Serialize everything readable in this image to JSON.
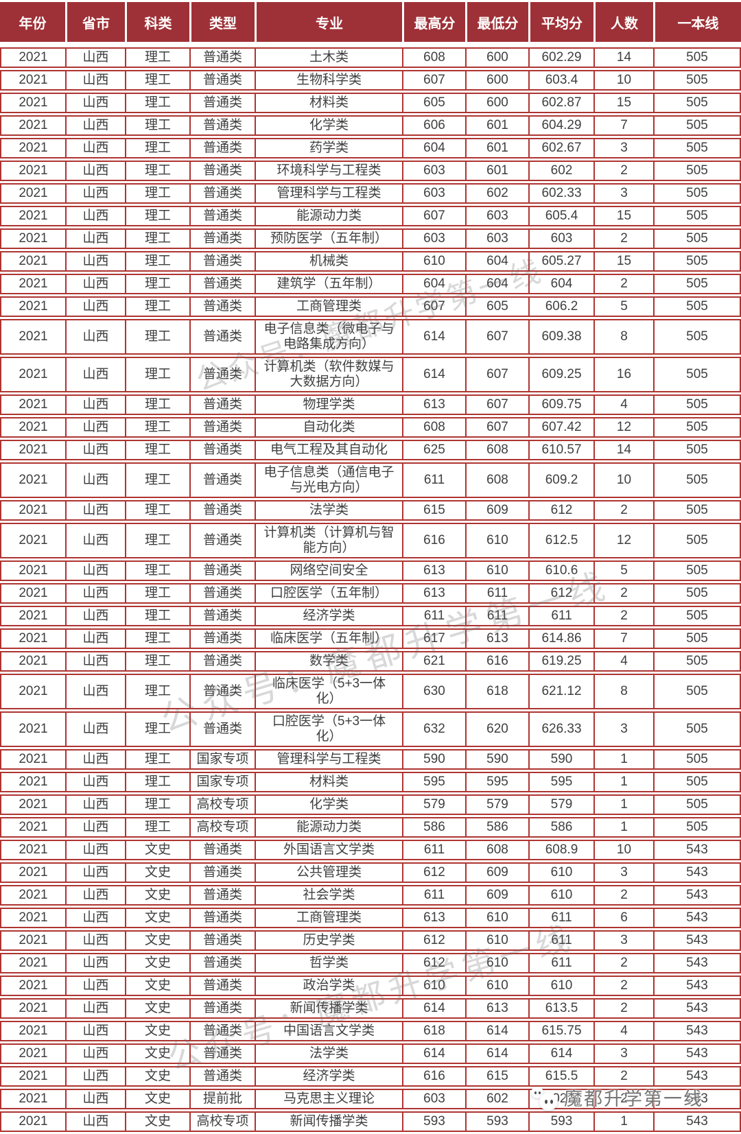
{
  "watermarks": {
    "diagonal_text": "公众号：魔都升学第一线",
    "badge_text": "魔都升学第一线",
    "badge_row_index": 42,
    "badge_cell_index": 7
  },
  "colors": {
    "header_bg": "#9e3137",
    "border": "#ae3431",
    "header_text": "#ffffff",
    "body_text": "#3f3f3f"
  },
  "chart_data": {
    "type": "table",
    "columns": [
      "年份",
      "省市",
      "科类",
      "类型",
      "专业",
      "最高分",
      "最低分",
      "平均分",
      "人数",
      "一本线"
    ],
    "column_keys": [
      "year",
      "province",
      "subject",
      "batch-type",
      "major",
      "max-score",
      "min-score",
      "avg-score",
      "count",
      "tier1-line"
    ],
    "rows": [
      [
        "2021",
        "山西",
        "理工",
        "普通类",
        "土木类",
        "608",
        "600",
        "602.29",
        "14",
        "505"
      ],
      [
        "2021",
        "山西",
        "理工",
        "普通类",
        "生物科学类",
        "607",
        "600",
        "603.4",
        "10",
        "505"
      ],
      [
        "2021",
        "山西",
        "理工",
        "普通类",
        "材料类",
        "605",
        "600",
        "602.87",
        "15",
        "505"
      ],
      [
        "2021",
        "山西",
        "理工",
        "普通类",
        "化学类",
        "606",
        "601",
        "604.29",
        "7",
        "505"
      ],
      [
        "2021",
        "山西",
        "理工",
        "普通类",
        "药学类",
        "604",
        "601",
        "602.67",
        "3",
        "505"
      ],
      [
        "2021",
        "山西",
        "理工",
        "普通类",
        "环境科学与工程类",
        "603",
        "601",
        "602",
        "2",
        "505"
      ],
      [
        "2021",
        "山西",
        "理工",
        "普通类",
        "管理科学与工程类",
        "603",
        "602",
        "602.33",
        "3",
        "505"
      ],
      [
        "2021",
        "山西",
        "理工",
        "普通类",
        "能源动力类",
        "607",
        "603",
        "605.4",
        "15",
        "505"
      ],
      [
        "2021",
        "山西",
        "理工",
        "普通类",
        "预防医学（五年制）",
        "603",
        "603",
        "603",
        "2",
        "505"
      ],
      [
        "2021",
        "山西",
        "理工",
        "普通类",
        "机械类",
        "610",
        "604",
        "605.27",
        "15",
        "505"
      ],
      [
        "2021",
        "山西",
        "理工",
        "普通类",
        "建筑学（五年制）",
        "604",
        "604",
        "604",
        "2",
        "505"
      ],
      [
        "2021",
        "山西",
        "理工",
        "普通类",
        "工商管理类",
        "607",
        "605",
        "606.2",
        "5",
        "505"
      ],
      [
        "2021",
        "山西",
        "理工",
        "普通类",
        "电子信息类（微电子与电路集成方向）",
        "614",
        "607",
        "609.38",
        "8",
        "505"
      ],
      [
        "2021",
        "山西",
        "理工",
        "普通类",
        "计算机类（软件数媒与大数据方向）",
        "614",
        "607",
        "609.25",
        "16",
        "505"
      ],
      [
        "2021",
        "山西",
        "理工",
        "普通类",
        "物理学类",
        "613",
        "607",
        "609.75",
        "4",
        "505"
      ],
      [
        "2021",
        "山西",
        "理工",
        "普通类",
        "自动化类",
        "608",
        "607",
        "607.42",
        "12",
        "505"
      ],
      [
        "2021",
        "山西",
        "理工",
        "普通类",
        "电气工程及其自动化",
        "625",
        "608",
        "610.57",
        "14",
        "505"
      ],
      [
        "2021",
        "山西",
        "理工",
        "普通类",
        "电子信息类（通信电子与光电方向）",
        "611",
        "608",
        "609.2",
        "10",
        "505"
      ],
      [
        "2021",
        "山西",
        "理工",
        "普通类",
        "法学类",
        "615",
        "609",
        "612",
        "2",
        "505"
      ],
      [
        "2021",
        "山西",
        "理工",
        "普通类",
        "计算机类（计算机与智能方向）",
        "616",
        "610",
        "612.5",
        "12",
        "505"
      ],
      [
        "2021",
        "山西",
        "理工",
        "普通类",
        "网络空间安全",
        "613",
        "610",
        "610.6",
        "5",
        "505"
      ],
      [
        "2021",
        "山西",
        "理工",
        "普通类",
        "口腔医学（五年制）",
        "613",
        "611",
        "612",
        "2",
        "505"
      ],
      [
        "2021",
        "山西",
        "理工",
        "普通类",
        "经济学类",
        "611",
        "611",
        "611",
        "2",
        "505"
      ],
      [
        "2021",
        "山西",
        "理工",
        "普通类",
        "临床医学（五年制）",
        "617",
        "613",
        "614.86",
        "7",
        "505"
      ],
      [
        "2021",
        "山西",
        "理工",
        "普通类",
        "数学类",
        "621",
        "616",
        "619.25",
        "4",
        "505"
      ],
      [
        "2021",
        "山西",
        "理工",
        "普通类",
        "临床医学（5+3一体化）",
        "630",
        "618",
        "621.12",
        "8",
        "505"
      ],
      [
        "2021",
        "山西",
        "理工",
        "普通类",
        "口腔医学（5+3一体化）",
        "632",
        "620",
        "626.33",
        "3",
        "505"
      ],
      [
        "2021",
        "山西",
        "理工",
        "国家专项",
        "管理科学与工程类",
        "590",
        "590",
        "590",
        "1",
        "505"
      ],
      [
        "2021",
        "山西",
        "理工",
        "国家专项",
        "材料类",
        "595",
        "595",
        "595",
        "1",
        "505"
      ],
      [
        "2021",
        "山西",
        "理工",
        "高校专项",
        "化学类",
        "579",
        "579",
        "579",
        "1",
        "505"
      ],
      [
        "2021",
        "山西",
        "理工",
        "高校专项",
        "能源动力类",
        "586",
        "586",
        "586",
        "1",
        "505"
      ],
      [
        "2021",
        "山西",
        "文史",
        "普通类",
        "外国语言文学类",
        "611",
        "608",
        "608.9",
        "10",
        "543"
      ],
      [
        "2021",
        "山西",
        "文史",
        "普通类",
        "公共管理类",
        "612",
        "609",
        "610",
        "3",
        "543"
      ],
      [
        "2021",
        "山西",
        "文史",
        "普通类",
        "社会学类",
        "611",
        "609",
        "610",
        "2",
        "543"
      ],
      [
        "2021",
        "山西",
        "文史",
        "普通类",
        "工商管理类",
        "613",
        "610",
        "611",
        "6",
        "543"
      ],
      [
        "2021",
        "山西",
        "文史",
        "普通类",
        "历史学类",
        "612",
        "610",
        "611",
        "3",
        "543"
      ],
      [
        "2021",
        "山西",
        "文史",
        "普通类",
        "哲学类",
        "612",
        "610",
        "611",
        "2",
        "543"
      ],
      [
        "2021",
        "山西",
        "文史",
        "普通类",
        "政治学类",
        "610",
        "610",
        "610",
        "2",
        "543"
      ],
      [
        "2021",
        "山西",
        "文史",
        "普通类",
        "新闻传播学类",
        "614",
        "613",
        "613.5",
        "2",
        "543"
      ],
      [
        "2021",
        "山西",
        "文史",
        "普通类",
        "中国语言文学类",
        "618",
        "614",
        "615.75",
        "4",
        "543"
      ],
      [
        "2021",
        "山西",
        "文史",
        "普通类",
        "法学类",
        "614",
        "614",
        "614",
        "3",
        "543"
      ],
      [
        "2021",
        "山西",
        "文史",
        "普通类",
        "经济学类",
        "616",
        "615",
        "615.5",
        "2",
        "543"
      ],
      [
        "2021",
        "山西",
        "文史",
        "提前批",
        "马克思主义理论",
        "603",
        "602",
        "602.5",
        "2",
        "543"
      ],
      [
        "2021",
        "山西",
        "文史",
        "高校专项",
        "新闻传播学类",
        "593",
        "593",
        "593",
        "1",
        "543"
      ]
    ]
  }
}
